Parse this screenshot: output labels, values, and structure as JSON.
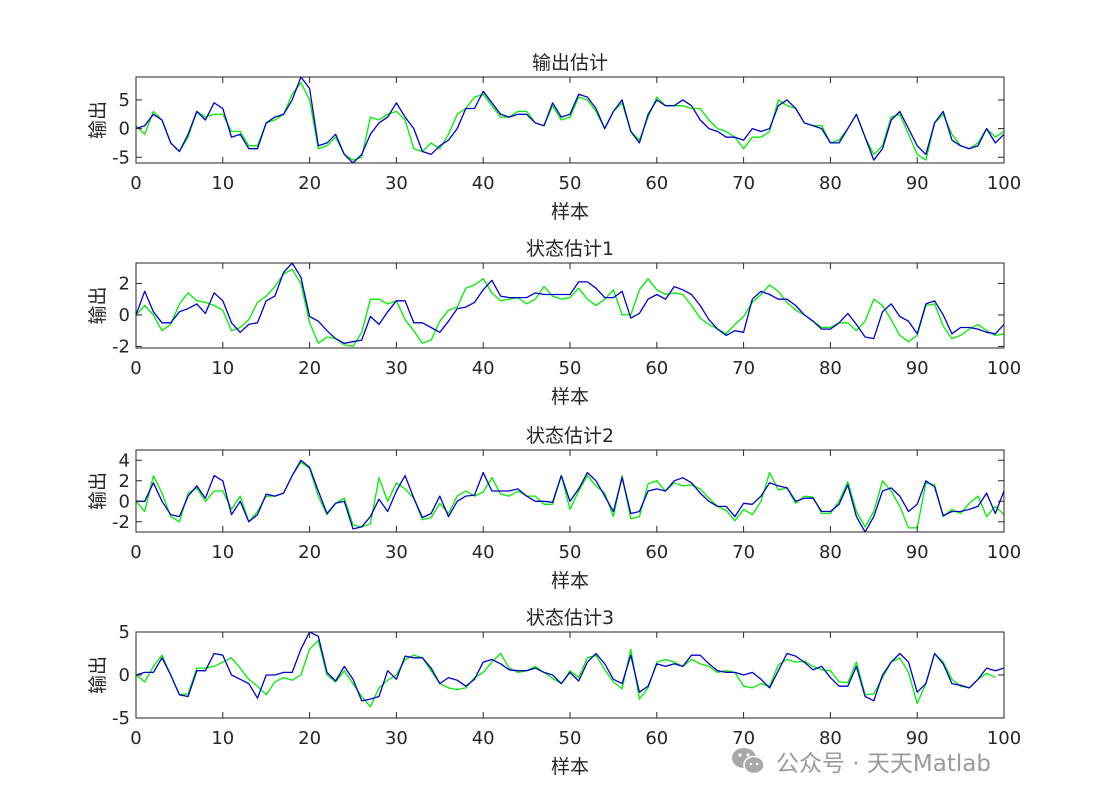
{
  "colors": {
    "measured": "#00ee00",
    "estimated": "#0000cc",
    "axis": "#262626"
  },
  "watermark": {
    "icon": "wechat-icon",
    "text": "公众号 · 天天Matlab"
  },
  "chart_data": [
    {
      "type": "line",
      "title": "输出估计",
      "xlabel": "样本",
      "ylabel": "输出",
      "xlim": [
        0,
        100
      ],
      "ylim": [
        -6,
        9
      ],
      "xticks": [
        0,
        10,
        20,
        30,
        40,
        50,
        60,
        70,
        80,
        90,
        100
      ],
      "yticks": [
        -5,
        0,
        5
      ],
      "series": [
        {
          "color": "#00ee00",
          "values": [
            0.5,
            -1,
            3,
            1.5,
            -2.5,
            -4,
            -1.5,
            3,
            2,
            2.5,
            2.5,
            -0.5,
            -0.5,
            -3,
            -3,
            1,
            1.5,
            2.5,
            6,
            8,
            5,
            -3.5,
            -3,
            -1.5,
            -4.5,
            -5.5,
            -5,
            2,
            1.5,
            2.5,
            3,
            1.5,
            -3.5,
            -4,
            -2.5,
            -3.5,
            -1,
            2.5,
            3.5,
            5.5,
            6,
            4,
            2,
            2,
            3,
            3,
            1,
            0.5,
            4,
            1.5,
            2,
            5.5,
            5,
            3,
            0,
            3,
            4.5,
            -0.5,
            -2,
            2,
            5.5,
            4,
            4,
            4,
            3.5,
            3.5,
            1.5,
            0,
            -0.5,
            -1.5,
            -3.5,
            -1.5,
            -1.5,
            -0.5,
            5,
            4,
            3.5,
            1,
            0.5,
            0.5,
            -2.5,
            -2,
            0,
            2.5,
            -1.5,
            -4.5,
            -3,
            2,
            2.5,
            -1,
            -4.5,
            -5.5,
            1,
            2.5,
            -1,
            -3,
            -3.5,
            -2.5,
            0,
            -1.5,
            -0.5
          ]
        },
        {
          "color": "#0000cc",
          "values": [
            0,
            0.5,
            2.5,
            1.5,
            -2.5,
            -4,
            -1,
            3,
            1.5,
            4.5,
            3.5,
            -1.5,
            -1,
            -3.5,
            -3.5,
            1,
            2,
            2.5,
            5,
            9,
            7,
            -3,
            -2.5,
            -1,
            -4.5,
            -6,
            -4.5,
            -1,
            1,
            2,
            4.5,
            2,
            0,
            -4,
            -4.5,
            -3,
            -2,
            0,
            3.5,
            3.5,
            6.5,
            4.5,
            2.5,
            2,
            2.5,
            2.5,
            1,
            0.5,
            4.5,
            2,
            2.5,
            6,
            5.5,
            3.5,
            0,
            3,
            5,
            -0.5,
            -2.5,
            2.5,
            5,
            4,
            4,
            5,
            4,
            1.5,
            0,
            -0.5,
            -1.5,
            -1.5,
            -2,
            0,
            -0.5,
            0,
            4,
            5,
            3.5,
            1,
            0.5,
            0,
            -2.5,
            -2.5,
            0,
            2.5,
            -1.5,
            -5.5,
            -3.5,
            1.5,
            3,
            0,
            -3,
            -4.5,
            1,
            3,
            -2,
            -3,
            -3.5,
            -3,
            0,
            -2.5,
            -1
          ]
        }
      ]
    },
    {
      "type": "line",
      "title": "状态估计1",
      "xlabel": "样本",
      "ylabel": "输出",
      "xlim": [
        0,
        100
      ],
      "ylim": [
        -2.1,
        3.3
      ],
      "xticks": [
        0,
        10,
        20,
        30,
        40,
        50,
        60,
        70,
        80,
        90,
        100
      ],
      "yticks": [
        -2,
        0,
        2
      ],
      "series": [
        {
          "color": "#00ee00",
          "values": [
            0,
            0.6,
            0,
            -1,
            -0.6,
            0.7,
            1.4,
            0.9,
            0.8,
            0.6,
            0.3,
            -1,
            -0.8,
            -0.3,
            0.8,
            1.2,
            1.8,
            2.6,
            2.9,
            2,
            -0.5,
            -1.8,
            -1.4,
            -1.5,
            -1.9,
            -2,
            -1.1,
            1,
            1,
            0.7,
            0.9,
            -0.3,
            -1,
            -1.8,
            -1.6,
            -0.4,
            0.3,
            0.5,
            1.7,
            1.9,
            2.3,
            1.4,
            0.9,
            1,
            1.1,
            0.7,
            1,
            1.8,
            1.2,
            1,
            1.1,
            1.7,
            1,
            0.6,
            1,
            1.6,
            0,
            0,
            1.6,
            2.3,
            1.6,
            1.3,
            1.4,
            1.3,
            0.6,
            -0.2,
            -0.6,
            -0.9,
            -1.2,
            -0.6,
            -0.1,
            0.8,
            1.3,
            1.9,
            1.5,
            0.8,
            0.3,
            0,
            -0.4,
            -0.8,
            -0.8,
            -0.5,
            -0.5,
            -1,
            -0.4,
            1,
            0.6,
            -0.3,
            -1.3,
            -1.7,
            -1.3,
            0.6,
            0.7,
            -0.7,
            -1.5,
            -1.3,
            -0.9,
            -0.6,
            -1,
            -1.3,
            -1.2
          ]
        },
        {
          "color": "#0000cc",
          "values": [
            0,
            1.5,
            0.2,
            -0.5,
            -0.5,
            0.2,
            0.4,
            0.7,
            0.1,
            1.4,
            0.9,
            -0.5,
            -1.1,
            -0.6,
            -0.5,
            0.9,
            1.2,
            2.7,
            3.3,
            2.4,
            -0.1,
            -0.4,
            -1,
            -1.5,
            -1.8,
            -1.7,
            -1.6,
            -0.1,
            -0.6,
            0.2,
            0.9,
            0.9,
            -0.5,
            -0.5,
            -0.8,
            -1.1,
            -0.4,
            0.4,
            0.5,
            0.8,
            1.6,
            2.2,
            1.2,
            1.1,
            1.1,
            1.1,
            1.4,
            1.3,
            1.3,
            1.3,
            1.3,
            2.1,
            2.1,
            1.7,
            1.1,
            1.1,
            1.5,
            -0.2,
            0.1,
            1,
            1.3,
            1,
            1.8,
            1.6,
            1.3,
            0.6,
            -0.3,
            -0.9,
            -1.3,
            -1,
            -1.1,
            1,
            1.5,
            1.3,
            1,
            1,
            0.6,
            0,
            -0.4,
            -0.9,
            -0.9,
            -0.5,
            0.1,
            -0.6,
            -1.4,
            -1.5,
            0.2,
            0.7,
            -0.1,
            -0.4,
            -1.2,
            0.7,
            0.9,
            0,
            -1.2,
            -0.8,
            -0.8,
            -0.9,
            -1.1,
            -1.2,
            -0.6
          ]
        }
      ]
    },
    {
      "type": "line",
      "title": "状态估计2",
      "xlabel": "样本",
      "ylabel": "输出",
      "xlim": [
        0,
        100
      ],
      "ylim": [
        -3,
        5
      ],
      "xticks": [
        0,
        10,
        20,
        30,
        40,
        50,
        60,
        70,
        80,
        90,
        100
      ],
      "yticks": [
        -2,
        0,
        2,
        4
      ],
      "series": [
        {
          "color": "#00ee00",
          "values": [
            0,
            -1,
            2.5,
            0.8,
            -1.5,
            -2,
            0.8,
            1.3,
            0,
            1,
            1,
            -0.8,
            0.5,
            -2,
            -1,
            0.5,
            0.5,
            0.8,
            2.5,
            3.8,
            3.2,
            0.5,
            -1.3,
            -0.2,
            0.3,
            -2.3,
            -2.5,
            -2.2,
            2.3,
            0,
            1.8,
            1.2,
            0.3,
            -1.8,
            -1.6,
            -0.2,
            -1.2,
            0.5,
            1,
            0.5,
            0.9,
            2.3,
            0.7,
            0.5,
            1,
            0.5,
            0.5,
            -0.3,
            -0.3,
            2.5,
            -0.8,
            1,
            2.5,
            1.5,
            0.8,
            -1.5,
            2.5,
            -1.7,
            -1.5,
            1.7,
            2,
            1,
            1.8,
            1.5,
            1.6,
            1.2,
            0.3,
            -0.5,
            -0.9,
            -1.9,
            -0.8,
            -1.3,
            0,
            2.8,
            1.1,
            1.3,
            -0.2,
            0.5,
            0.4,
            -1.2,
            -1.2,
            0,
            1.9,
            -1,
            -2.5,
            -1,
            2,
            1,
            -0.5,
            -2.6,
            -2.6,
            1.8,
            1.6,
            -1.5,
            -0.8,
            -1.2,
            -0.2,
            0.5,
            -1.5,
            -0.5,
            -1.3
          ]
        },
        {
          "color": "#0000cc",
          "values": [
            0,
            0,
            1.8,
            0,
            -1.3,
            -1.5,
            0.5,
            1.5,
            0.3,
            2.5,
            2,
            -1.3,
            0,
            -2,
            -1.3,
            0.7,
            0.5,
            0.8,
            2.5,
            4,
            3.3,
            1,
            -1.2,
            -0.2,
            0,
            -2.7,
            -2.5,
            -1.5,
            0.2,
            -1,
            1,
            2.5,
            0.3,
            -1.6,
            -1.2,
            0.5,
            -1.5,
            0,
            0.5,
            0.6,
            2.8,
            1,
            1,
            1,
            1.2,
            0.5,
            0,
            0,
            -0.1,
            2.5,
            0,
            1.2,
            2.8,
            2,
            0.5,
            -1,
            2.3,
            -1.2,
            -1,
            1,
            1.2,
            1,
            2,
            2.3,
            1.8,
            0.8,
            0,
            -0.5,
            -0.5,
            -1.5,
            -0.2,
            -0.3,
            0.5,
            1.8,
            1.5,
            1.3,
            0,
            0.3,
            0.3,
            -1,
            -1,
            -0.3,
            1.6,
            -1.5,
            -3,
            -1.5,
            1,
            1.3,
            0.5,
            -1,
            -0.3,
            2,
            1.4,
            -1.4,
            -1,
            -1,
            -0.8,
            -0.5,
            0.8,
            -1.2,
            1
          ]
        }
      ]
    },
    {
      "type": "line",
      "title": "状态估计3",
      "xlabel": "样本",
      "ylabel": "输出",
      "xlim": [
        0,
        100
      ],
      "ylim": [
        -5,
        5
      ],
      "xticks": [
        0,
        10,
        20,
        30,
        40,
        50,
        60,
        70,
        80,
        90,
        100
      ],
      "yticks": [
        -5,
        0,
        5
      ],
      "series": [
        {
          "color": "#00ee00",
          "values": [
            0,
            -0.8,
            1,
            2.3,
            0,
            -2.3,
            -2.2,
            0.8,
            0.8,
            1,
            1.5,
            2,
            0.8,
            -0.5,
            -1.3,
            -2.3,
            -0.8,
            -0.3,
            -0.6,
            0,
            3,
            4,
            0,
            -0.8,
            0.5,
            -1,
            -2.5,
            -3.7,
            -1.5,
            -0.6,
            0,
            1.8,
            2.3,
            2,
            0.5,
            -1,
            -1.5,
            -1.7,
            -1.5,
            -0.3,
            0.3,
            1.5,
            2.5,
            0.8,
            0.3,
            0.5,
            1,
            0.3,
            -0.4,
            -1,
            0.5,
            -0.3,
            2,
            2.3,
            0.6,
            -0.8,
            -1.6,
            3,
            -2.8,
            -1.5,
            1.5,
            1.8,
            1.5,
            1,
            1.8,
            1.3,
            1,
            0.3,
            0.5,
            0.3,
            -1.3,
            -1.5,
            -1,
            -1.3,
            1.2,
            1.8,
            1.5,
            1.6,
            1,
            0.6,
            0.5,
            -0.8,
            -0.9,
            1.5,
            -2.3,
            -2.2,
            -0.3,
            1.5,
            2,
            0.3,
            -3.3,
            -1,
            2.5,
            1.5,
            -0.5,
            -1.3,
            -1.5,
            -0.5,
            0.2,
            -0.3
          ]
        },
        {
          "color": "#0000cc",
          "values": [
            0,
            0.3,
            0.3,
            2,
            0,
            -2.3,
            -2.5,
            0.5,
            0.5,
            2.5,
            2.3,
            0,
            -0.5,
            -1,
            -2.7,
            0,
            0,
            0.3,
            0.3,
            3,
            5,
            4.5,
            0.3,
            -0.7,
            1,
            -0.5,
            -3,
            -2.8,
            -2.5,
            0.5,
            -0.5,
            2.2,
            2,
            2,
            0.8,
            -1,
            -0.3,
            -0.6,
            -1.3,
            -0.5,
            1.5,
            1.8,
            1.3,
            0.6,
            0.5,
            0.5,
            0.8,
            0.3,
            0,
            -1,
            0.3,
            -0.7,
            1.5,
            2.5,
            1.3,
            -0.5,
            -1,
            2.3,
            -2,
            -1.3,
            1.3,
            1,
            1.3,
            1,
            2.3,
            2.3,
            1.3,
            0.5,
            0.3,
            0.3,
            0,
            0.3,
            -0.5,
            -1.5,
            0.5,
            2.5,
            2.2,
            1.5,
            0.6,
            1,
            -0.3,
            -1.3,
            -1.3,
            1,
            -2.5,
            -3,
            0,
            1.5,
            2.5,
            1.5,
            -2,
            -1,
            2.5,
            1.3,
            -1,
            -1.2,
            -1.5,
            -0.5,
            0.8,
            0.5,
            0.8
          ]
        }
      ]
    }
  ]
}
